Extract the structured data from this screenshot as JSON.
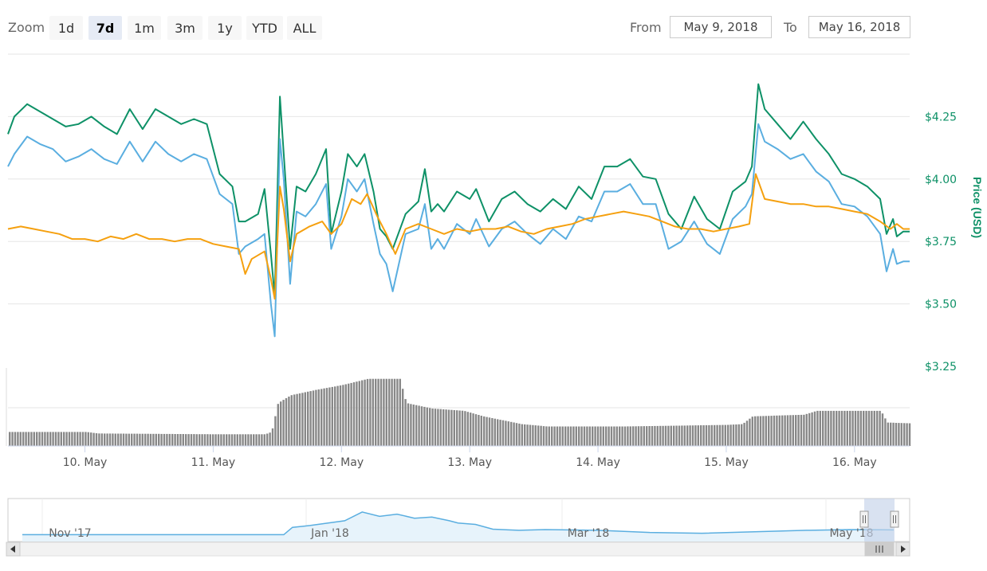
{
  "toolbar": {
    "zoom_label": "Zoom",
    "zoom_buttons": [
      "1d",
      "7d",
      "1m",
      "3m",
      "1y",
      "YTD",
      "ALL"
    ],
    "active_zoom": "7d",
    "from_label": "From",
    "from_value": "May 9, 2018",
    "to_label": "To",
    "to_value": "May 16, 2018"
  },
  "colors": {
    "green": "#0e9167",
    "blue": "#5aaee0",
    "orange": "#f5a00f",
    "volume": "#888888",
    "navigator_line": "#5aaee0",
    "navigator_mask": "#c5d2ea"
  },
  "chart_data": {
    "type": "line",
    "ylabel": "Price (USD)",
    "yticks": [
      "$4.25",
      "$4.00",
      "$3.75",
      "$3.50",
      "$3.25"
    ],
    "ylim": [
      3.25,
      4.5
    ],
    "xlim_days": [
      9.4,
      16.43
    ],
    "xticks": [
      "10. May",
      "11. May",
      "12. May",
      "13. May",
      "14. May",
      "15. May",
      "16. May"
    ],
    "series": [
      {
        "color": "green",
        "points": [
          [
            9.4,
            4.18
          ],
          [
            9.45,
            4.25
          ],
          [
            9.55,
            4.3
          ],
          [
            9.65,
            4.27
          ],
          [
            9.75,
            4.24
          ],
          [
            9.85,
            4.21
          ],
          [
            9.95,
            4.22
          ],
          [
            10.05,
            4.25
          ],
          [
            10.15,
            4.21
          ],
          [
            10.25,
            4.18
          ],
          [
            10.35,
            4.28
          ],
          [
            10.45,
            4.2
          ],
          [
            10.55,
            4.28
          ],
          [
            10.65,
            4.25
          ],
          [
            10.75,
            4.22
          ],
          [
            10.85,
            4.24
          ],
          [
            10.95,
            4.22
          ],
          [
            11.05,
            4.02
          ],
          [
            11.15,
            3.97
          ],
          [
            11.2,
            3.83
          ],
          [
            11.25,
            3.83
          ],
          [
            11.35,
            3.86
          ],
          [
            11.4,
            3.96
          ],
          [
            11.45,
            3.7
          ],
          [
            11.48,
            3.53
          ],
          [
            11.52,
            4.33
          ],
          [
            11.55,
            4.1
          ],
          [
            11.6,
            3.72
          ],
          [
            11.65,
            3.97
          ],
          [
            11.72,
            3.95
          ],
          [
            11.8,
            4.02
          ],
          [
            11.88,
            4.12
          ],
          [
            11.92,
            3.78
          ],
          [
            12.0,
            3.95
          ],
          [
            12.05,
            4.1
          ],
          [
            12.12,
            4.05
          ],
          [
            12.18,
            4.1
          ],
          [
            12.25,
            3.95
          ],
          [
            12.3,
            3.8
          ],
          [
            12.35,
            3.77
          ],
          [
            12.4,
            3.72
          ],
          [
            12.5,
            3.86
          ],
          [
            12.6,
            3.91
          ],
          [
            12.65,
            4.04
          ],
          [
            12.7,
            3.87
          ],
          [
            12.75,
            3.9
          ],
          [
            12.8,
            3.87
          ],
          [
            12.9,
            3.95
          ],
          [
            13.0,
            3.92
          ],
          [
            13.05,
            3.96
          ],
          [
            13.15,
            3.83
          ],
          [
            13.25,
            3.92
          ],
          [
            13.35,
            3.95
          ],
          [
            13.45,
            3.9
          ],
          [
            13.55,
            3.87
          ],
          [
            13.65,
            3.92
          ],
          [
            13.75,
            3.88
          ],
          [
            13.85,
            3.97
          ],
          [
            13.95,
            3.92
          ],
          [
            14.05,
            4.05
          ],
          [
            14.15,
            4.05
          ],
          [
            14.25,
            4.08
          ],
          [
            14.35,
            4.01
          ],
          [
            14.45,
            4.0
          ],
          [
            14.55,
            3.86
          ],
          [
            14.65,
            3.8
          ],
          [
            14.75,
            3.93
          ],
          [
            14.85,
            3.84
          ],
          [
            14.95,
            3.8
          ],
          [
            15.05,
            3.95
          ],
          [
            15.15,
            3.99
          ],
          [
            15.2,
            4.05
          ],
          [
            15.25,
            4.38
          ],
          [
            15.3,
            4.28
          ],
          [
            15.4,
            4.22
          ],
          [
            15.5,
            4.16
          ],
          [
            15.6,
            4.23
          ],
          [
            15.7,
            4.16
          ],
          [
            15.8,
            4.1
          ],
          [
            15.9,
            4.02
          ],
          [
            16.0,
            4.0
          ],
          [
            16.1,
            3.97
          ],
          [
            16.2,
            3.92
          ],
          [
            16.25,
            3.78
          ],
          [
            16.3,
            3.84
          ],
          [
            16.33,
            3.77
          ],
          [
            16.38,
            3.79
          ],
          [
            16.43,
            3.79
          ]
        ]
      },
      {
        "color": "blue",
        "points": [
          [
            9.4,
            4.05
          ],
          [
            9.45,
            4.1
          ],
          [
            9.55,
            4.17
          ],
          [
            9.65,
            4.14
          ],
          [
            9.75,
            4.12
          ],
          [
            9.85,
            4.07
          ],
          [
            9.95,
            4.09
          ],
          [
            10.05,
            4.12
          ],
          [
            10.15,
            4.08
          ],
          [
            10.25,
            4.06
          ],
          [
            10.35,
            4.15
          ],
          [
            10.45,
            4.07
          ],
          [
            10.55,
            4.15
          ],
          [
            10.65,
            4.1
          ],
          [
            10.75,
            4.07
          ],
          [
            10.85,
            4.1
          ],
          [
            10.95,
            4.08
          ],
          [
            11.05,
            3.94
          ],
          [
            11.15,
            3.9
          ],
          [
            11.2,
            3.7
          ],
          [
            11.25,
            3.73
          ],
          [
            11.35,
            3.76
          ],
          [
            11.4,
            3.78
          ],
          [
            11.45,
            3.5
          ],
          [
            11.48,
            3.37
          ],
          [
            11.52,
            4.16
          ],
          [
            11.55,
            4.0
          ],
          [
            11.6,
            3.58
          ],
          [
            11.65,
            3.87
          ],
          [
            11.72,
            3.85
          ],
          [
            11.8,
            3.9
          ],
          [
            11.88,
            3.98
          ],
          [
            11.92,
            3.72
          ],
          [
            12.0,
            3.85
          ],
          [
            12.05,
            4.0
          ],
          [
            12.12,
            3.95
          ],
          [
            12.18,
            4.0
          ],
          [
            12.25,
            3.82
          ],
          [
            12.3,
            3.7
          ],
          [
            12.35,
            3.66
          ],
          [
            12.4,
            3.55
          ],
          [
            12.5,
            3.78
          ],
          [
            12.6,
            3.8
          ],
          [
            12.65,
            3.9
          ],
          [
            12.7,
            3.72
          ],
          [
            12.75,
            3.76
          ],
          [
            12.8,
            3.72
          ],
          [
            12.9,
            3.82
          ],
          [
            13.0,
            3.78
          ],
          [
            13.05,
            3.84
          ],
          [
            13.15,
            3.73
          ],
          [
            13.25,
            3.8
          ],
          [
            13.35,
            3.83
          ],
          [
            13.45,
            3.78
          ],
          [
            13.55,
            3.74
          ],
          [
            13.65,
            3.8
          ],
          [
            13.75,
            3.76
          ],
          [
            13.85,
            3.85
          ],
          [
            13.95,
            3.83
          ],
          [
            14.05,
            3.95
          ],
          [
            14.15,
            3.95
          ],
          [
            14.25,
            3.98
          ],
          [
            14.35,
            3.9
          ],
          [
            14.45,
            3.9
          ],
          [
            14.55,
            3.72
          ],
          [
            14.65,
            3.75
          ],
          [
            14.75,
            3.83
          ],
          [
            14.85,
            3.74
          ],
          [
            14.95,
            3.7
          ],
          [
            15.05,
            3.84
          ],
          [
            15.15,
            3.89
          ],
          [
            15.2,
            3.94
          ],
          [
            15.25,
            4.22
          ],
          [
            15.3,
            4.15
          ],
          [
            15.4,
            4.12
          ],
          [
            15.5,
            4.08
          ],
          [
            15.6,
            4.1
          ],
          [
            15.7,
            4.03
          ],
          [
            15.8,
            3.99
          ],
          [
            15.9,
            3.9
          ],
          [
            16.0,
            3.89
          ],
          [
            16.1,
            3.85
          ],
          [
            16.2,
            3.78
          ],
          [
            16.25,
            3.63
          ],
          [
            16.3,
            3.72
          ],
          [
            16.33,
            3.66
          ],
          [
            16.38,
            3.67
          ],
          [
            16.43,
            3.67
          ]
        ]
      },
      {
        "color": "orange",
        "points": [
          [
            9.4,
            3.8
          ],
          [
            9.5,
            3.81
          ],
          [
            9.6,
            3.8
          ],
          [
            9.7,
            3.79
          ],
          [
            9.8,
            3.78
          ],
          [
            9.9,
            3.76
          ],
          [
            10.0,
            3.76
          ],
          [
            10.1,
            3.75
          ],
          [
            10.2,
            3.77
          ],
          [
            10.3,
            3.76
          ],
          [
            10.4,
            3.78
          ],
          [
            10.5,
            3.76
          ],
          [
            10.6,
            3.76
          ],
          [
            10.7,
            3.75
          ],
          [
            10.8,
            3.76
          ],
          [
            10.9,
            3.76
          ],
          [
            11.0,
            3.74
          ],
          [
            11.1,
            3.73
          ],
          [
            11.2,
            3.72
          ],
          [
            11.25,
            3.62
          ],
          [
            11.3,
            3.68
          ],
          [
            11.4,
            3.71
          ],
          [
            11.45,
            3.6
          ],
          [
            11.48,
            3.52
          ],
          [
            11.52,
            3.97
          ],
          [
            11.55,
            3.88
          ],
          [
            11.6,
            3.67
          ],
          [
            11.65,
            3.78
          ],
          [
            11.75,
            3.81
          ],
          [
            11.85,
            3.83
          ],
          [
            11.92,
            3.78
          ],
          [
            12.0,
            3.82
          ],
          [
            12.08,
            3.92
          ],
          [
            12.15,
            3.9
          ],
          [
            12.2,
            3.94
          ],
          [
            12.28,
            3.85
          ],
          [
            12.35,
            3.78
          ],
          [
            12.42,
            3.7
          ],
          [
            12.5,
            3.8
          ],
          [
            12.6,
            3.82
          ],
          [
            12.7,
            3.8
          ],
          [
            12.8,
            3.78
          ],
          [
            12.9,
            3.8
          ],
          [
            13.0,
            3.79
          ],
          [
            13.1,
            3.8
          ],
          [
            13.2,
            3.8
          ],
          [
            13.3,
            3.81
          ],
          [
            13.4,
            3.79
          ],
          [
            13.5,
            3.78
          ],
          [
            13.6,
            3.8
          ],
          [
            13.7,
            3.81
          ],
          [
            13.8,
            3.82
          ],
          [
            13.9,
            3.84
          ],
          [
            14.0,
            3.85
          ],
          [
            14.1,
            3.86
          ],
          [
            14.2,
            3.87
          ],
          [
            14.3,
            3.86
          ],
          [
            14.4,
            3.85
          ],
          [
            14.5,
            3.83
          ],
          [
            14.6,
            3.81
          ],
          [
            14.7,
            3.8
          ],
          [
            14.8,
            3.8
          ],
          [
            14.9,
            3.79
          ],
          [
            15.0,
            3.8
          ],
          [
            15.1,
            3.81
          ],
          [
            15.18,
            3.82
          ],
          [
            15.23,
            4.02
          ],
          [
            15.3,
            3.92
          ],
          [
            15.4,
            3.91
          ],
          [
            15.5,
            3.9
          ],
          [
            15.6,
            3.9
          ],
          [
            15.7,
            3.89
          ],
          [
            15.8,
            3.89
          ],
          [
            15.9,
            3.88
          ],
          [
            16.0,
            3.87
          ],
          [
            16.1,
            3.86
          ],
          [
            16.2,
            3.83
          ],
          [
            16.28,
            3.8
          ],
          [
            16.33,
            3.82
          ],
          [
            16.38,
            3.8
          ],
          [
            16.43,
            3.8
          ]
        ]
      }
    ],
    "volume": [
      [
        9.4,
        0.18
      ],
      [
        10.0,
        0.18
      ],
      [
        10.1,
        0.16
      ],
      [
        11.0,
        0.15
      ],
      [
        11.4,
        0.15
      ],
      [
        11.45,
        0.18
      ],
      [
        11.5,
        0.55
      ],
      [
        11.6,
        0.65
      ],
      [
        11.8,
        0.72
      ],
      [
        12.0,
        0.78
      ],
      [
        12.2,
        0.86
      ],
      [
        12.45,
        0.86
      ],
      [
        12.5,
        0.55
      ],
      [
        12.7,
        0.48
      ],
      [
        12.95,
        0.45
      ],
      [
        13.1,
        0.38
      ],
      [
        13.4,
        0.28
      ],
      [
        13.6,
        0.25
      ],
      [
        14.2,
        0.25
      ],
      [
        14.6,
        0.26
      ],
      [
        15.0,
        0.27
      ],
      [
        15.12,
        0.28
      ],
      [
        15.2,
        0.38
      ],
      [
        15.6,
        0.4
      ],
      [
        15.7,
        0.45
      ],
      [
        16.2,
        0.45
      ],
      [
        16.25,
        0.3
      ],
      [
        16.43,
        0.29
      ]
    ],
    "navigator": {
      "labels": [
        "Nov '17",
        "Jan '18",
        "Mar '18",
        "May '18"
      ],
      "levels": [
        [
          0.0,
          0.1
        ],
        [
          0.3,
          0.1
        ],
        [
          0.31,
          0.3
        ],
        [
          0.33,
          0.35
        ],
        [
          0.37,
          0.48
        ],
        [
          0.39,
          0.72
        ],
        [
          0.41,
          0.6
        ],
        [
          0.43,
          0.66
        ],
        [
          0.45,
          0.55
        ],
        [
          0.47,
          0.58
        ],
        [
          0.49,
          0.48
        ],
        [
          0.5,
          0.42
        ],
        [
          0.52,
          0.38
        ],
        [
          0.54,
          0.25
        ],
        [
          0.57,
          0.22
        ],
        [
          0.6,
          0.24
        ],
        [
          0.66,
          0.22
        ],
        [
          0.72,
          0.16
        ],
        [
          0.78,
          0.14
        ],
        [
          0.84,
          0.18
        ],
        [
          0.9,
          0.22
        ],
        [
          0.95,
          0.24
        ],
        [
          1.0,
          0.23
        ]
      ]
    }
  }
}
